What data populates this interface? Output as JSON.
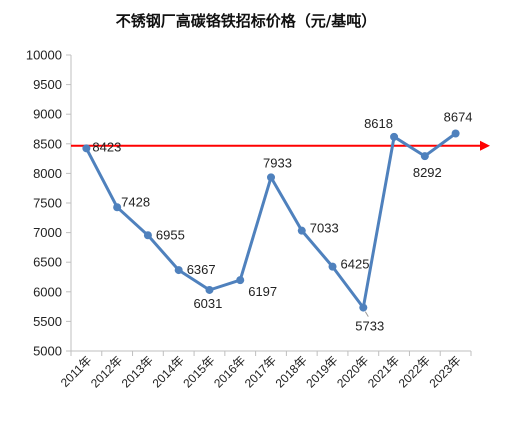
{
  "chart_data": {
    "type": "line",
    "title": "不锈钢厂高碳铬铁招标价格（元/基吨）",
    "categories": [
      "2011年",
      "2012年",
      "2013年",
      "2014年",
      "2015年",
      "2016年",
      "2017年",
      "2018年",
      "2019年",
      "2020年",
      "2021年",
      "2022年",
      "2023年"
    ],
    "series": [
      {
        "values": [
          8423,
          7428,
          6955,
          6367,
          6031,
          6197,
          7933,
          7033,
          6425,
          5733,
          8618,
          8292,
          8674
        ]
      }
    ],
    "ylim": [
      5000,
      10000
    ],
    "yticks": [
      5000,
      5500,
      6000,
      6500,
      7000,
      7500,
      8000,
      8500,
      9000,
      9500,
      10000
    ],
    "reference_line": {
      "value": 8500,
      "color": "#ff0000"
    },
    "grid": false,
    "legend": "none",
    "colors": {
      "series": "#4f81bd",
      "reference": "#ff0000",
      "axis": "#bfbfbf"
    }
  }
}
